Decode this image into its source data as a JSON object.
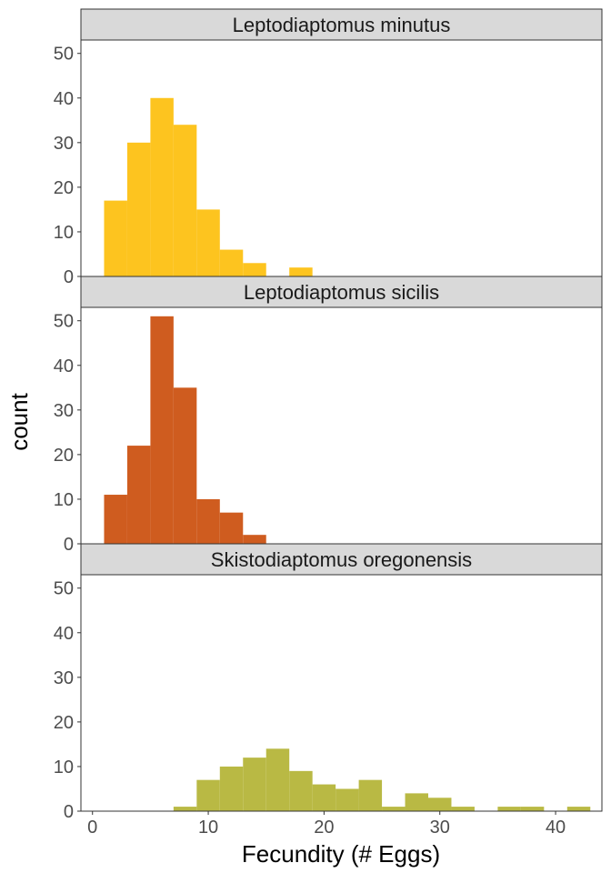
{
  "chart_data": {
    "type": "bar",
    "subtype": "faceted-histogram",
    "xlabel": "Fecundity (# Eggs)",
    "ylabel": "count",
    "xlim": [
      -1,
      44
    ],
    "ylim": [
      0,
      53
    ],
    "x_ticks": [
      0,
      10,
      20,
      30,
      40
    ],
    "y_ticks": [
      0,
      10,
      20,
      30,
      40,
      50
    ],
    "bin_width": 2,
    "grid": false,
    "legend": "none",
    "facets": [
      {
        "label": "Leptodiaptomus minutus",
        "color": "#fdc41f",
        "bins": [
          {
            "x0": 1,
            "x1": 3,
            "count": 17
          },
          {
            "x0": 3,
            "x1": 5,
            "count": 30
          },
          {
            "x0": 5,
            "x1": 7,
            "count": 40
          },
          {
            "x0": 7,
            "x1": 9,
            "count": 34
          },
          {
            "x0": 9,
            "x1": 11,
            "count": 15
          },
          {
            "x0": 11,
            "x1": 13,
            "count": 6
          },
          {
            "x0": 13,
            "x1": 15,
            "count": 3
          },
          {
            "x0": 17,
            "x1": 19,
            "count": 2
          }
        ]
      },
      {
        "label": "Leptodiaptomus sicilis",
        "color": "#cf5c1f",
        "bins": [
          {
            "x0": 1,
            "x1": 3,
            "count": 11
          },
          {
            "x0": 3,
            "x1": 5,
            "count": 22
          },
          {
            "x0": 5,
            "x1": 7,
            "count": 51
          },
          {
            "x0": 7,
            "x1": 9,
            "count": 35
          },
          {
            "x0": 9,
            "x1": 11,
            "count": 10
          },
          {
            "x0": 11,
            "x1": 13,
            "count": 7
          },
          {
            "x0": 13,
            "x1": 15,
            "count": 2
          }
        ]
      },
      {
        "label": "Skistodiaptomus oregonensis",
        "color": "#b9b944",
        "bins": [
          {
            "x0": 7,
            "x1": 9,
            "count": 1
          },
          {
            "x0": 9,
            "x1": 11,
            "count": 7
          },
          {
            "x0": 11,
            "x1": 13,
            "count": 10
          },
          {
            "x0": 13,
            "x1": 15,
            "count": 12
          },
          {
            "x0": 15,
            "x1": 17,
            "count": 14
          },
          {
            "x0": 17,
            "x1": 19,
            "count": 9
          },
          {
            "x0": 19,
            "x1": 21,
            "count": 6
          },
          {
            "x0": 21,
            "x1": 23,
            "count": 5
          },
          {
            "x0": 23,
            "x1": 25,
            "count": 7
          },
          {
            "x0": 25,
            "x1": 27,
            "count": 1
          },
          {
            "x0": 27,
            "x1": 29,
            "count": 4
          },
          {
            "x0": 29,
            "x1": 31,
            "count": 3
          },
          {
            "x0": 31,
            "x1": 33,
            "count": 1
          },
          {
            "x0": 35,
            "x1": 37,
            "count": 1
          },
          {
            "x0": 37,
            "x1": 39,
            "count": 1
          },
          {
            "x0": 41,
            "x1": 43,
            "count": 1
          }
        ]
      }
    ]
  }
}
